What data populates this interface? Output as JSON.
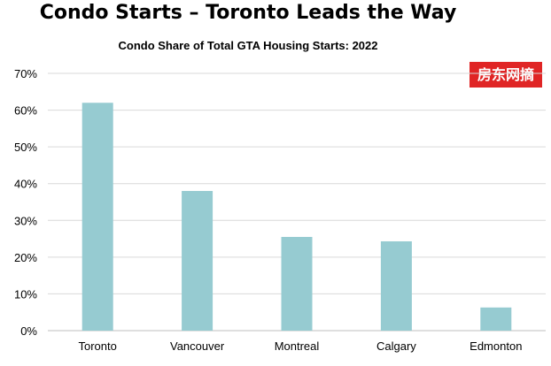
{
  "header": {
    "title": "Condo Starts – Toronto Leads the Way",
    "watermark": "房东网摘"
  },
  "colors": {
    "bar": "#96cbd1",
    "grid": "#d9d9d9",
    "watermark_bg": "#e02525"
  },
  "chart_data": {
    "type": "bar",
    "title": "Condo Share of Total GTA Housing Starts: 2022",
    "categories": [
      "Toronto",
      "Vancouver",
      "Montreal",
      "Calgary",
      "Edmonton"
    ],
    "values": [
      62,
      38,
      25.5,
      24.3,
      6.3
    ],
    "ylim": [
      0,
      70
    ],
    "yticks": [
      0,
      10,
      20,
      30,
      40,
      50,
      60,
      70
    ],
    "ytick_labels": [
      "0%",
      "10%",
      "20%",
      "30%",
      "40%",
      "50%",
      "60%",
      "70%"
    ],
    "xlabel": "",
    "ylabel": "",
    "grid": true,
    "legend": "none"
  }
}
